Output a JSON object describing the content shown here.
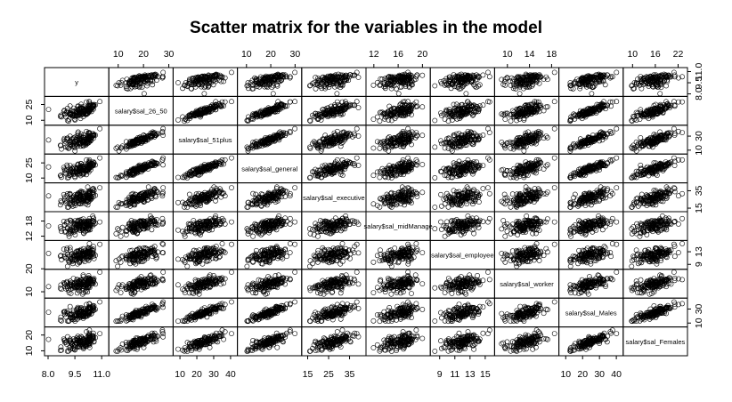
{
  "chart_data": {
    "type": "scatter",
    "subtype": "scatter-matrix",
    "title": "Scatter matrix for the variables in the model",
    "variables": [
      {
        "name": "y",
        "range": [
          7.9,
          11.3
        ],
        "ticks": [
          "8.0",
          "9.5",
          "11.0"
        ],
        "tick_values": [
          8.0,
          9.5,
          11.0
        ]
      },
      {
        "name": "salary$sal_26_50",
        "range": [
          7,
          31
        ],
        "ticks": [
          "10",
          "20",
          "30"
        ],
        "tick_values": [
          10,
          20,
          30
        ]
      },
      {
        "name": "salary$sal_51plus",
        "range": [
          7,
          43
        ],
        "ticks": [
          "10",
          "20",
          "30",
          "40"
        ],
        "tick_values": [
          10,
          20,
          30,
          40
        ]
      },
      {
        "name": "salary$sal_general",
        "range": [
          7,
          32
        ],
        "ticks": [
          "10",
          "20",
          "30"
        ],
        "tick_values": [
          10,
          20,
          30
        ]
      },
      {
        "name": "salary$sal_executive",
        "range": [
          13,
          42
        ],
        "ticks": [
          "15",
          "25",
          "35"
        ],
        "tick_values": [
          15,
          25,
          35
        ]
      },
      {
        "name": "salary$sal_midManage",
        "range": [
          11,
          21
        ],
        "ticks": [
          "12",
          "16",
          "20"
        ],
        "tick_values": [
          12,
          16,
          20
        ]
      },
      {
        "name": "salary$sal_employee",
        "range": [
          8,
          16
        ],
        "ticks": [
          "9",
          "11",
          "13",
          "15"
        ],
        "tick_values": [
          9,
          11,
          13,
          15
        ]
      },
      {
        "name": "salary$sal_worker",
        "range": [
          8,
          19
        ],
        "ticks": [
          "10",
          "14",
          "18"
        ],
        "tick_values": [
          10,
          14,
          18
        ]
      },
      {
        "name": "salary$sal_Males",
        "range": [
          7,
          43
        ],
        "ticks": [
          "10",
          "20",
          "30",
          "40"
        ],
        "tick_values": [
          10,
          20,
          30,
          40
        ]
      },
      {
        "name": "salary$sal_Females",
        "range": [
          8,
          24
        ],
        "ticks": [
          "10",
          "16",
          "22"
        ],
        "tick_values": [
          10,
          16,
          22
        ]
      }
    ],
    "axis_labels": {
      "top": [
        {
          "var": 1,
          "ticks": [
            "10",
            "20",
            "30"
          ]
        },
        {
          "var": 3,
          "ticks": [
            "10",
            "20",
            "30"
          ]
        },
        {
          "var": 5,
          "ticks": [
            "12",
            "16",
            "20"
          ]
        },
        {
          "var": 7,
          "ticks": [
            "10",
            "14",
            "18"
          ]
        },
        {
          "var": 9,
          "ticks": [
            "10",
            "16",
            "22"
          ]
        }
      ],
      "bottom": [
        {
          "var": 0,
          "ticks": [
            "8.0",
            "9.5",
            "11.0"
          ]
        },
        {
          "var": 2,
          "ticks": [
            "10",
            "20",
            "30",
            "40"
          ]
        },
        {
          "var": 4,
          "ticks": [
            "15",
            "25",
            "35"
          ]
        },
        {
          "var": 6,
          "ticks": [
            "9",
            "11",
            "13",
            "15"
          ]
        },
        {
          "var": 8,
          "ticks": [
            "10",
            "20",
            "30",
            "40"
          ]
        }
      ],
      "left": [
        {
          "var": 1,
          "ticks": [
            "10",
            "25"
          ]
        },
        {
          "var": 3,
          "ticks": [
            "10",
            "25"
          ]
        },
        {
          "var": 5,
          "ticks": [
            "12",
            "18"
          ]
        },
        {
          "var": 7,
          "ticks": [
            "10",
            "20"
          ]
        },
        {
          "var": 9,
          "ticks": [
            "10",
            "20"
          ]
        }
      ],
      "right": [
        {
          "var": 0,
          "ticks": [
            "8.0",
            "9.5",
            "11.0"
          ]
        },
        {
          "var": 2,
          "ticks": [
            "10",
            "30"
          ]
        },
        {
          "var": 4,
          "ticks": [
            "15",
            "35"
          ]
        },
        {
          "var": 6,
          "ticks": [
            "9",
            "13"
          ]
        },
        {
          "var": 8,
          "ticks": [
            "10",
            "30"
          ]
        }
      ]
    },
    "points": {
      "count": 140,
      "marker": "open-circle",
      "relationship": "strong positive correlation among salary variables; weaker positive relation with y"
    },
    "grid": false,
    "legend": "none",
    "colors": {
      "points": "#000000",
      "panels": "#000000",
      "background": "#ffffff"
    }
  }
}
